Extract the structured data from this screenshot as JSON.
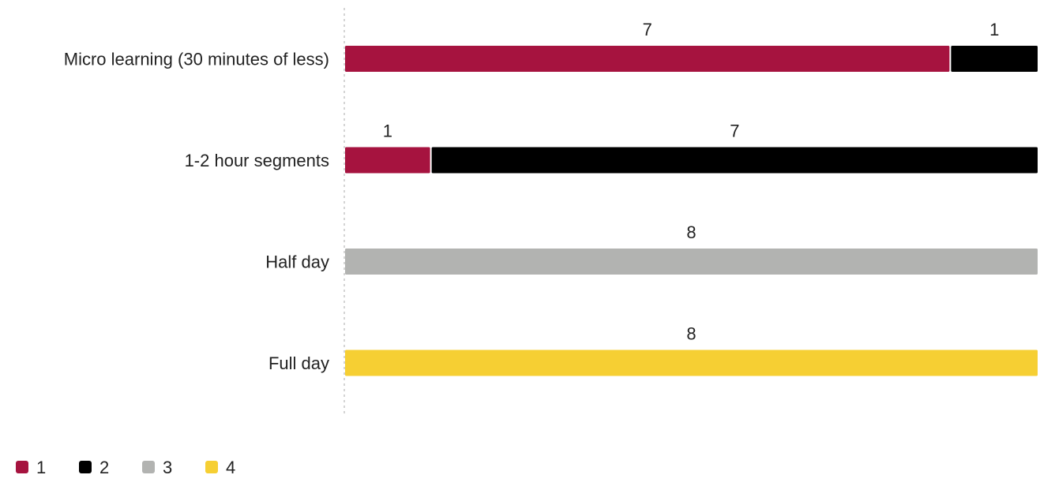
{
  "chart_data": {
    "type": "bar",
    "orientation": "horizontal",
    "stacked": true,
    "categories": [
      "Micro learning (30 minutes of less)",
      "1-2 hour segments",
      "Half day",
      "Full day"
    ],
    "series": [
      {
        "name": "1",
        "color": "#a6133f",
        "values": [
          7,
          1,
          0,
          0
        ]
      },
      {
        "name": "2",
        "color": "#000000",
        "values": [
          1,
          7,
          0,
          0
        ]
      },
      {
        "name": "3",
        "color": "#b2b3b1",
        "values": [
          0,
          0,
          8,
          0
        ]
      },
      {
        "name": "4",
        "color": "#f6cf33",
        "values": [
          0,
          0,
          0,
          8
        ]
      }
    ],
    "xlim": [
      0,
      8
    ],
    "grid": false,
    "legend": "bottom-left",
    "data_labels": true
  }
}
